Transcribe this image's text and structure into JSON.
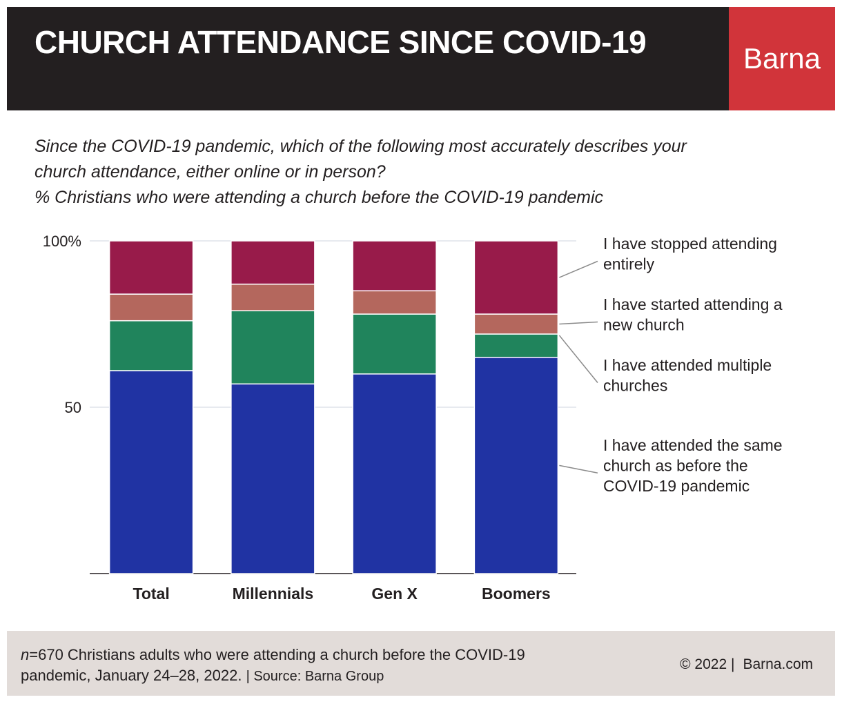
{
  "header": {
    "title": "CHURCH ATTENDANCE SINCE COVID-19",
    "brand": "Barna"
  },
  "question": {
    "line1": "Since the COVID-19 pandemic, which of the following most accurately describes your",
    "line2": "church attendance, either online or in person?",
    "line3": "% Christians who were attending a church before the COVID-19 pandemic"
  },
  "chart_data": {
    "type": "bar",
    "stacked": true,
    "categories": [
      "Total",
      "Millennials",
      "Gen X",
      "Boomers"
    ],
    "ylim": [
      0,
      100
    ],
    "yticks": [
      {
        "value": 50,
        "label": "50"
      },
      {
        "value": 100,
        "label": "100%"
      }
    ],
    "grid": true,
    "legend_position": "right",
    "series": [
      {
        "name": "I have attended the same church as before the COVID-19 pandemic",
        "color": "#2033a3",
        "values": [
          61,
          57,
          60,
          65
        ]
      },
      {
        "name": "I have attended multiple churches",
        "color": "#20845c",
        "values": [
          15,
          22,
          18,
          7
        ]
      },
      {
        "name": "I have started attending a new church",
        "color": "#b4675d",
        "values": [
          8,
          8,
          7,
          6
        ]
      },
      {
        "name": "I have stopped attending entirely",
        "color": "#981b4a",
        "values": [
          16,
          13,
          15,
          22
        ]
      }
    ],
    "legend_lines": [
      [
        "I have stopped attending",
        "entirely"
      ],
      [
        "I have started attending a",
        "new church"
      ],
      [
        "I have attended multiple",
        "churches"
      ],
      [
        "I have attended the same",
        "church as before the",
        "COVID-19 pandemic"
      ]
    ]
  },
  "footer": {
    "n_label": "n",
    "note_main": "=670 Christians adults who were attending a church before the COVID-19",
    "note_line2": "pandemic, January 24–28, 2022.",
    "source": "| Source: Barna Group",
    "copyright": "© 2022 |",
    "site": "Barna.com"
  }
}
